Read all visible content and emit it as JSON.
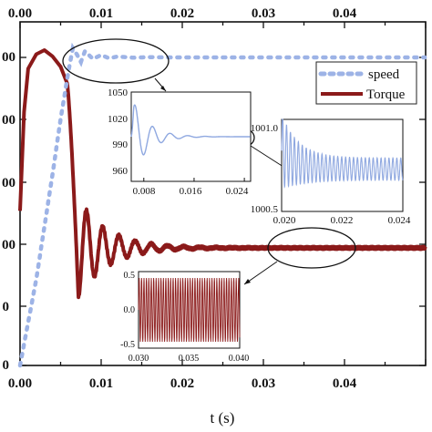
{
  "chart_data": [
    {
      "type": "line",
      "xlabel": "t (s)",
      "xlim": [
        0,
        0.05
      ],
      "xticks": [
        "0.00",
        "0.01",
        "0.02",
        "0.03",
        "0.04"
      ],
      "left_yticks": [
        "00",
        "00",
        "00",
        "00",
        "0",
        "0"
      ],
      "legend": {
        "position": "top-right",
        "entries": [
          "speed",
          "Torque"
        ]
      },
      "colors": {
        "speed": "#9db3e6",
        "torque": "#8b1a1a",
        "inset_line": "#8fa8e0"
      },
      "series": [
        {
          "name": "speed",
          "style": "dotted",
          "x": [
            0.0,
            0.001,
            0.002,
            0.003,
            0.004,
            0.005,
            0.006,
            0.0065,
            0.007,
            0.0075,
            0.008,
            0.009,
            0.01,
            0.011,
            0.012,
            0.014,
            0.016,
            0.018,
            0.02,
            0.03,
            0.04,
            0.05
          ],
          "y": [
            0,
            0.14,
            0.28,
            0.45,
            0.62,
            0.8,
            0.96,
            1.03,
            1.01,
            0.985,
            1.02,
            0.995,
            1.008,
            0.997,
            1.003,
            0.999,
            1.001,
            1.0,
            1.0,
            1.0,
            1.0,
            1.0
          ]
        },
        {
          "name": "Torque",
          "style": "solid",
          "x": [
            0.0,
            0.0005,
            0.001,
            0.002,
            0.003,
            0.004,
            0.005,
            0.0058,
            0.0062,
            0.0068,
            0.0072,
            0.0082,
            0.0092,
            0.0102,
            0.0112,
            0.0122,
            0.0132,
            0.0142,
            0.0152,
            0.0162,
            0.0175,
            0.019,
            0.021,
            0.024,
            0.03,
            0.04,
            0.05
          ],
          "y": [
            0.22,
            0.7,
            0.91,
            0.98,
            1.0,
            0.97,
            0.92,
            0.84,
            0.55,
            0.1,
            -0.2,
            0.28,
            -0.1,
            0.18,
            -0.02,
            0.1,
            0.01,
            0.07,
            0.03,
            0.05,
            0.04,
            0.045,
            0.04,
            0.04,
            0.04,
            0.04,
            0.04
          ]
        }
      ]
    },
    {
      "type": "line",
      "title": "",
      "xlim": [
        0.006,
        0.025
      ],
      "ylim": [
        950,
        1050
      ],
      "xticks": [
        "0.008",
        "0.016",
        "0.024"
      ],
      "yticks": [
        "1050",
        "1020",
        "990",
        "960"
      ],
      "series": [
        {
          "name": "",
          "x": [
            0.006,
            0.0065,
            0.007,
            0.0075,
            0.008,
            0.0085,
            0.009,
            0.0095,
            0.01,
            0.0105,
            0.011,
            0.0115,
            0.012,
            0.0125,
            0.013,
            0.014,
            0.015,
            0.016,
            0.018,
            0.02,
            0.022,
            0.024,
            0.025
          ],
          "y": [
            1000,
            1045,
            1010,
            965,
            975,
            1018,
            1000,
            982,
            990,
            1010,
            1000,
            992,
            996,
            1006,
            999,
            1002,
            998,
            1001,
            1000,
            1000,
            1000,
            1000,
            1000
          ]
        }
      ]
    },
    {
      "type": "line",
      "xlim": [
        0.02,
        0.024
      ],
      "ylim": [
        1000.5,
        1001.0
      ],
      "xticks": [
        "0.020",
        "0.022",
        "0.024"
      ],
      "yticks": [
        "1001.0",
        "1000.5"
      ],
      "series": [
        {
          "name": "",
          "description_points": "decaying oscillation from ~1000.95 settling around 1000.73 with amplitude ~0.06",
          "x": [
            0.02,
            0.024
          ],
          "y": [
            1000.75,
            1000.72
          ]
        }
      ]
    },
    {
      "type": "line",
      "xlim": [
        0.03,
        0.04
      ],
      "ylim": [
        -0.6,
        0.6
      ],
      "xticks": [
        "0.030",
        "0.035",
        "0.040"
      ],
      "yticks": [
        "0.5",
        "0.0",
        "-0.5"
      ],
      "series": [
        {
          "name": "",
          "x": [
            0.03,
            0.04
          ],
          "y": [
            0.5,
            -0.5
          ]
        }
      ]
    }
  ]
}
